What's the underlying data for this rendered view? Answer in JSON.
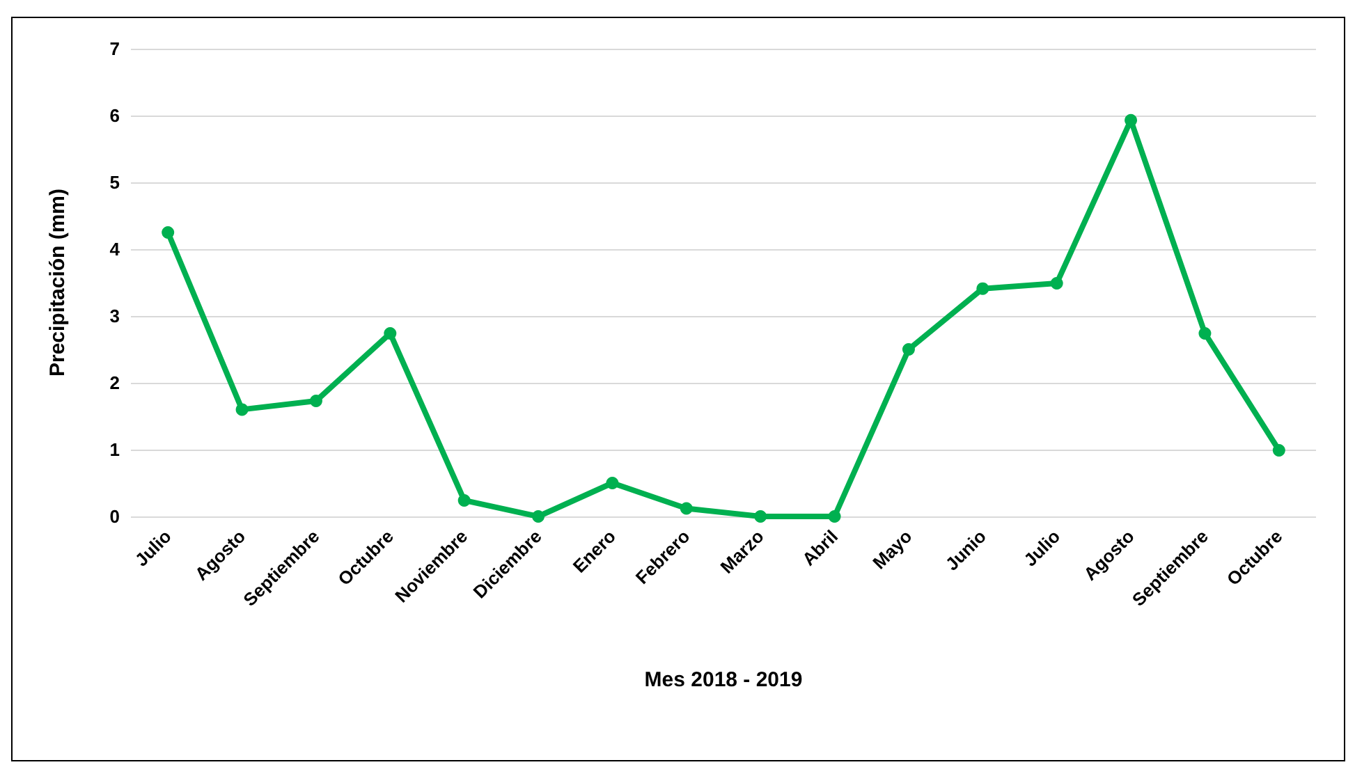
{
  "chart_data": {
    "type": "line",
    "xlabel": "Mes 2018 - 2019",
    "ylabel": "Precipitación (mm)",
    "categories": [
      "Julio",
      "Agosto",
      "Septiembre",
      "Octubre",
      "Noviembre",
      "Diciembre",
      "Enero",
      "Febrero",
      "Marzo",
      "Abril",
      "Mayo",
      "Junio",
      "Julio",
      "Agosto",
      "Septiembre",
      "Octubre"
    ],
    "series": [
      {
        "color": "#00b050",
        "values": [
          4.25,
          1.6,
          1.73,
          2.74,
          0.24,
          0,
          0.5,
          0.12,
          0,
          0,
          2.5,
          3.41,
          3.49,
          5.93,
          2.74,
          0.99
        ]
      }
    ],
    "ylim": [
      0,
      7
    ],
    "yticks": [
      0,
      1,
      2,
      3,
      4,
      5,
      6,
      7
    ],
    "grid": "y",
    "marker": "circle",
    "line_style": "solid"
  }
}
